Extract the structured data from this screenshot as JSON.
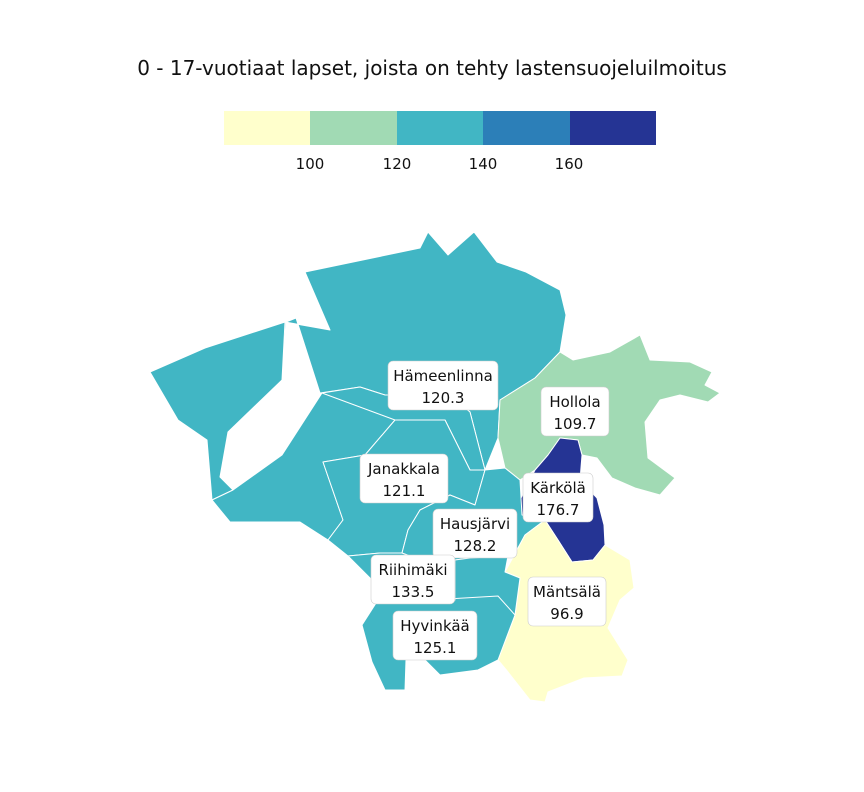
{
  "title": "0 - 17-vuotiaat lapset, joista on tehty lastensuojeluilmoitus",
  "legend": {
    "colors": [
      "#ffffcc",
      "#a1dab4",
      "#41b6c4",
      "#2c7fb8",
      "#253494"
    ],
    "breaks": [
      100,
      120,
      140,
      160
    ],
    "tick_labels": [
      "100",
      "120",
      "140",
      "160"
    ]
  },
  "municipalities": [
    {
      "name": "Hämeenlinna",
      "value": 120.3,
      "label_value": "120.3",
      "color": "#41b6c4"
    },
    {
      "name": "Hollola",
      "value": 109.7,
      "label_value": "109.7",
      "color": "#a1dab4"
    },
    {
      "name": "Janakkala",
      "value": 121.1,
      "label_value": "121.1",
      "color": "#41b6c4"
    },
    {
      "name": "Kärkölä",
      "value": 176.7,
      "label_value": "176.7",
      "color": "#253494"
    },
    {
      "name": "Hausjärvi",
      "value": 128.2,
      "label_value": "128.2",
      "color": "#41b6c4"
    },
    {
      "name": "Riihimäki",
      "value": 133.5,
      "label_value": "133.5",
      "color": "#41b6c4"
    },
    {
      "name": "Mäntsälä",
      "value": 96.9,
      "label_value": "96.9",
      "color": "#ffffcc"
    },
    {
      "name": "Hyvinkää",
      "value": 125.1,
      "label_value": "125.1",
      "color": "#41b6c4"
    }
  ]
}
